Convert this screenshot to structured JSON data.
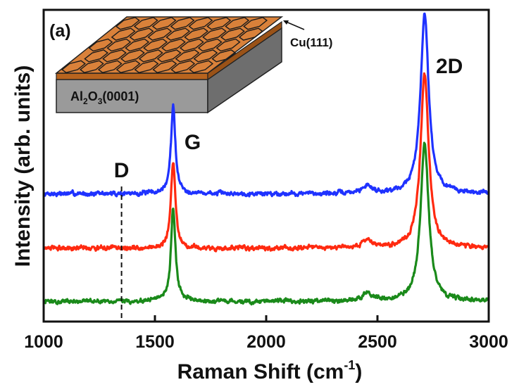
{
  "chart_data": {
    "type": "line",
    "title": "",
    "panel_label": "(a)",
    "xlabel": "Raman Shift (cm",
    "xlabel_sup": "-1",
    "xlabel_close": ")",
    "ylabel": "Intensity (arb. units)",
    "xlim": [
      1000,
      3000
    ],
    "ylim": [
      0,
      1
    ],
    "x_ticks": [
      1000,
      1500,
      2000,
      2500,
      3000
    ],
    "x_tick_labels": [
      "1000",
      "1500",
      "2000",
      "2500",
      "3000"
    ],
    "y_ticks_shown": false,
    "grid": false,
    "legend": "none",
    "series": [
      {
        "color": "#1f32ff",
        "baseline": 0.41,
        "peaks": [
          {
            "x": 1582,
            "height": 0.28,
            "width": 12
          },
          {
            "x": 2455,
            "height": 0.025,
            "width": 25
          },
          {
            "x": 2712,
            "height": 0.58,
            "width": 22
          }
        ]
      },
      {
        "color": "#ff2a10",
        "baseline": 0.235,
        "peaks": [
          {
            "x": 1582,
            "height": 0.28,
            "width": 12
          },
          {
            "x": 2455,
            "height": 0.025,
            "width": 25
          },
          {
            "x": 2712,
            "height": 0.56,
            "width": 22
          }
        ]
      },
      {
        "color": "#1a8a1a",
        "baseline": 0.065,
        "peaks": [
          {
            "x": 1582,
            "height": 0.3,
            "width": 12
          },
          {
            "x": 2455,
            "height": 0.025,
            "width": 25
          },
          {
            "x": 2712,
            "height": 0.51,
            "width": 22
          }
        ]
      }
    ],
    "reference_line": {
      "x": 1350,
      "label": "D",
      "style": "dashed"
    },
    "annotations": [
      {
        "text": "G",
        "x": 1582
      },
      {
        "text": "2D",
        "x": 2712
      }
    ],
    "inset": {
      "substrate_label": {
        "prefix": "Al",
        "sub1": "2",
        "mid": "O",
        "sub2": "3",
        "suffix": "(0001)"
      },
      "film_label": "Cu(111)",
      "film_color": "#d9813a",
      "substrate_color": "#9a9a9a"
    }
  }
}
